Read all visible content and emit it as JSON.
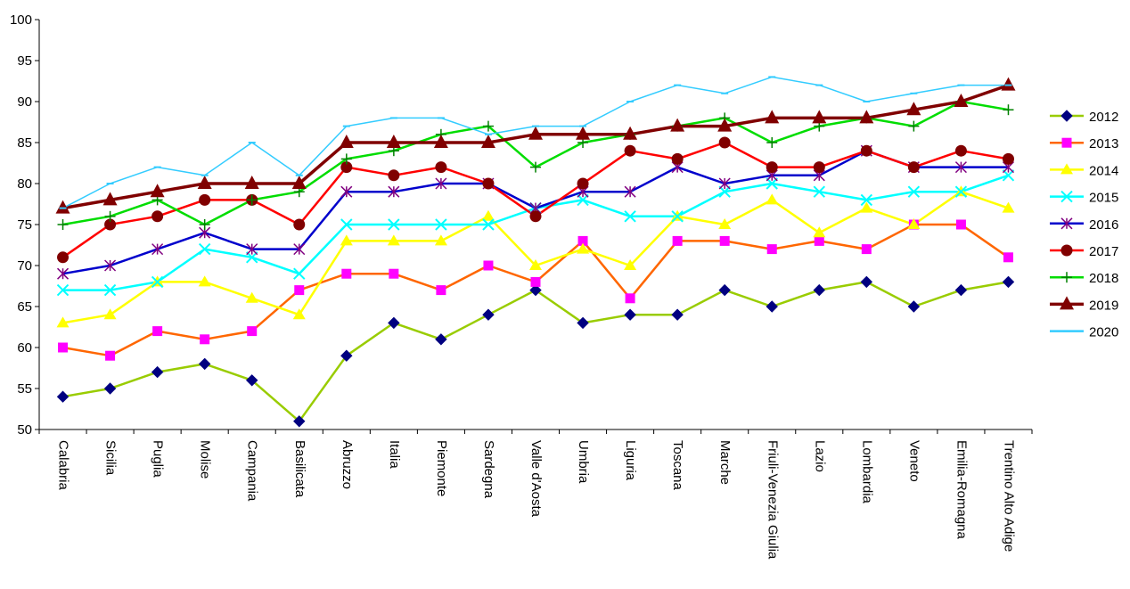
{
  "chart_data": {
    "type": "line",
    "title": "",
    "xlabel": "",
    "ylabel": "",
    "ylim": [
      50,
      100
    ],
    "yticks": [
      50,
      55,
      60,
      65,
      70,
      75,
      80,
      85,
      90,
      95,
      100
    ],
    "grid": false,
    "legend_position": "right",
    "categories": [
      "Calabria",
      "Sicilia",
      "Puglia",
      "Molise",
      "Campania",
      "Basilicata",
      "Abruzzo",
      "Italia",
      "Piemonte",
      "Sardegna",
      "Valle d'Aosta",
      "Umbria",
      "Liguria",
      "Toscana",
      "Marche",
      "Friuli-Venezia Giulia",
      "Lazio",
      "Lombardia",
      "Veneto",
      "Emilia-Romagna",
      "Trentino Alto Adige"
    ],
    "series": [
      {
        "name": "2012",
        "color": "#99cc00",
        "marker_color": "#000080",
        "marker": "diamond",
        "values": [
          54,
          55,
          57,
          58,
          56,
          51,
          59,
          63,
          61,
          64,
          67,
          63,
          64,
          64,
          67,
          65,
          67,
          68,
          65,
          67,
          68
        ]
      },
      {
        "name": "2013",
        "color": "#ff6600",
        "marker_color": "#ff00ff",
        "marker": "square",
        "values": [
          60,
          59,
          62,
          61,
          62,
          67,
          69,
          69,
          67,
          70,
          68,
          73,
          66,
          73,
          73,
          72,
          73,
          72,
          75,
          75,
          71
        ]
      },
      {
        "name": "2014",
        "color": "#ffff00",
        "marker_color": "#ffff00",
        "marker": "triangle",
        "values": [
          63,
          64,
          68,
          68,
          66,
          64,
          73,
          73,
          73,
          76,
          70,
          72,
          70,
          76,
          75,
          78,
          74,
          77,
          75,
          79,
          77
        ]
      },
      {
        "name": "2015",
        "color": "#00ffff",
        "marker_color": "#00ffff",
        "marker": "x",
        "values": [
          67,
          67,
          68,
          72,
          71,
          69,
          75,
          75,
          75,
          75,
          77,
          78,
          76,
          76,
          79,
          80,
          79,
          78,
          79,
          79,
          81
        ]
      },
      {
        "name": "2016",
        "color": "#0000cc",
        "marker_color": "#800080",
        "marker": "star",
        "values": [
          69,
          70,
          72,
          74,
          72,
          72,
          79,
          79,
          80,
          80,
          77,
          79,
          79,
          82,
          80,
          81,
          81,
          84,
          82,
          82,
          82
        ]
      },
      {
        "name": "2017",
        "color": "#ff0000",
        "marker_color": "#800000",
        "marker": "circle",
        "values": [
          71,
          75,
          76,
          78,
          78,
          75,
          82,
          81,
          82,
          80,
          76,
          80,
          84,
          83,
          85,
          82,
          82,
          84,
          82,
          84,
          83
        ]
      },
      {
        "name": "2018",
        "color": "#00dd00",
        "marker_color": "#008000",
        "marker": "plus",
        "values": [
          75,
          76,
          78,
          75,
          78,
          79,
          83,
          84,
          86,
          87,
          82,
          85,
          86,
          87,
          88,
          85,
          87,
          88,
          87,
          90,
          89
        ]
      },
      {
        "name": "2019",
        "color": "#800000",
        "marker_color": "#800000",
        "marker": "triangle-big",
        "values": [
          77,
          78,
          79,
          80,
          80,
          80,
          85,
          85,
          85,
          85,
          86,
          86,
          86,
          87,
          87,
          88,
          88,
          88,
          89,
          90,
          92
        ]
      },
      {
        "name": "2020",
        "color": "#33ccff",
        "marker_color": "#33ccff",
        "marker": "dash",
        "values": [
          77,
          80,
          82,
          81,
          85,
          81,
          87,
          88,
          88,
          86,
          87,
          87,
          90,
          92,
          91,
          93,
          92,
          90,
          91,
          92,
          92
        ]
      }
    ]
  }
}
